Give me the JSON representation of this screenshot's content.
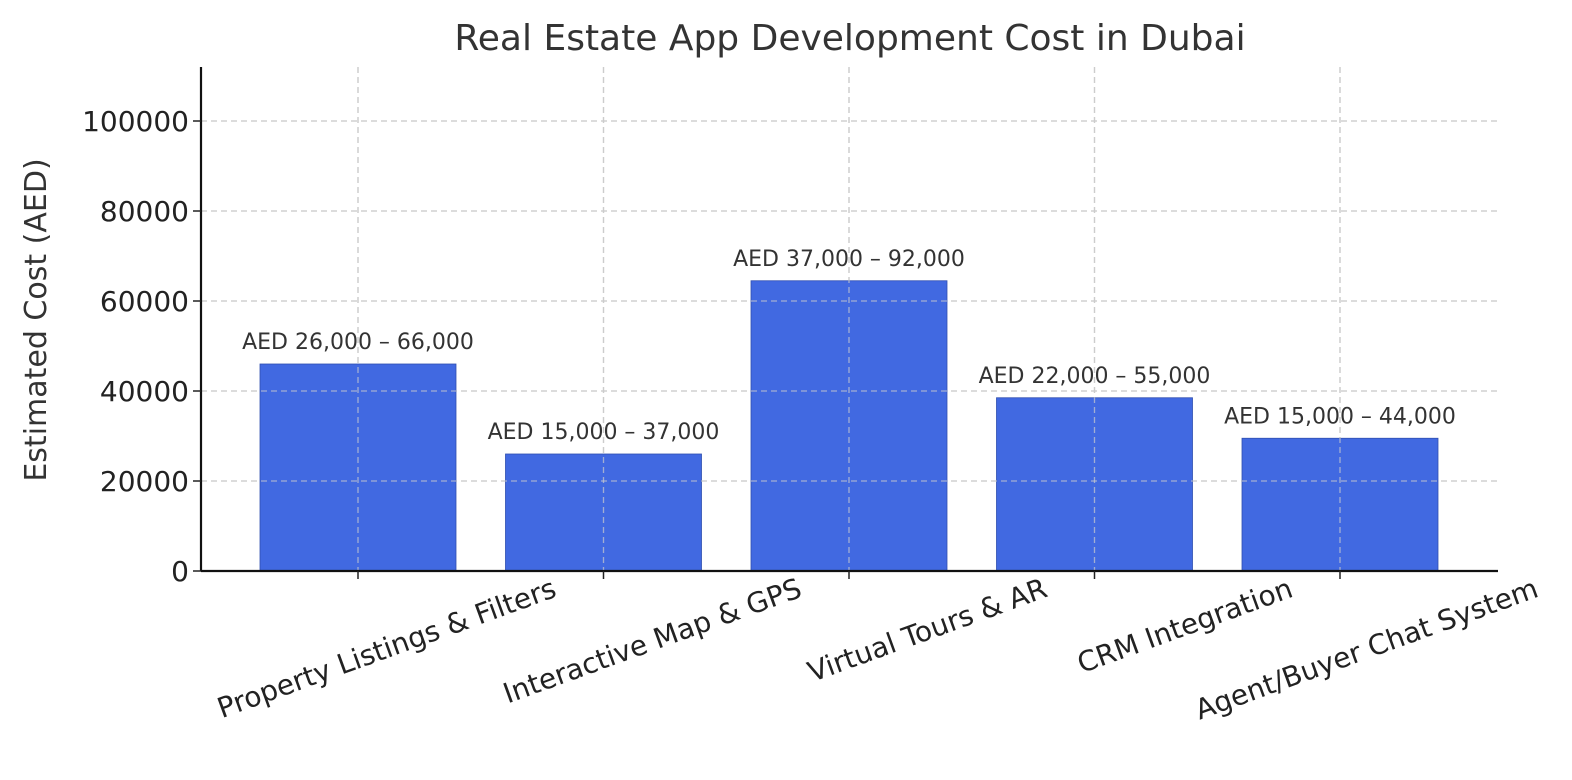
{
  "chart_data": {
    "type": "bar",
    "title": "Real Estate App Development Cost in Dubai",
    "xlabel": "",
    "ylabel": "Estimated Cost (AED)",
    "categories": [
      "Property Listings & Filters",
      "Interactive Map & GPS",
      "Virtual Tours & AR",
      "CRM Integration",
      "Agent/Buyer Chat System"
    ],
    "values": [
      46000,
      26000,
      64500,
      38500,
      29500
    ],
    "data_labels": [
      "AED 26,000 – 66,000",
      "AED 15,000 – 37,000",
      "AED 37,000 – 92,000",
      "AED 22,000 – 55,000",
      "AED 15,000 – 44,000"
    ],
    "ylim": [
      0,
      112000
    ],
    "yticks": [
      0,
      20000,
      40000,
      60000,
      80000,
      100000
    ],
    "ytick_labels": [
      "0",
      "20000",
      "40000",
      "60000",
      "80000",
      "100000"
    ],
    "grid": true,
    "legend": "none",
    "bar_color": "#4169e1"
  }
}
